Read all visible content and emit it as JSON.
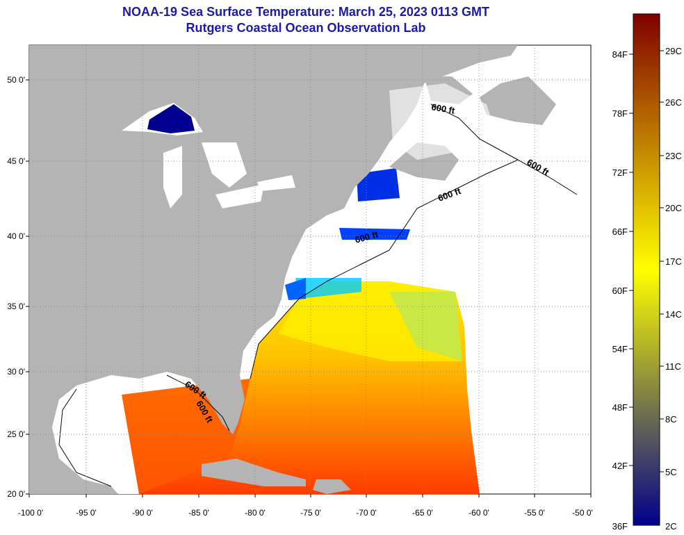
{
  "title": "NOAA-19 Sea Surface Temperature:  March 25, 2023 0113 GMT",
  "subtitle": "Rutgers Coastal Ocean Observation Lab",
  "colors": {
    "land": "#b4b4b4",
    "ocean_nodata": "#ffffff",
    "title": "#1a1aa6",
    "grid": "#888888"
  },
  "map_axes": {
    "lon_ticks": [
      "-100 0'",
      "-95 0'",
      "-90 0'",
      "-85 0'",
      "-80 0'",
      "-75 0'",
      "-70 0'",
      "-65 0'",
      "-60 0'",
      "-55 0'",
      "-50 0'"
    ],
    "lat_ticks": [
      "50 0'",
      "45 0'",
      "40 0'",
      "35 0'",
      "30 0'",
      "25 0'",
      "20 0'"
    ]
  },
  "contour_labels": [
    "600 ft",
    "600 ft",
    "600 ft",
    "600 ft",
    "600 ft",
    "600 ft"
  ],
  "colorbar": {
    "fahrenheit_labels": [
      "84F",
      "78F",
      "72F",
      "66F",
      "60F",
      "54F",
      "48F",
      "42F",
      "36F"
    ],
    "celsius_labels": [
      "29C",
      "26C",
      "23C",
      "20C",
      "17C",
      "14C",
      "11C",
      "8C",
      "5C",
      "2C"
    ],
    "gradient_top_to_bottom": [
      "#7f0000",
      "#c80000",
      "#ff2800",
      "#ff7800",
      "#ffc800",
      "#ffff00",
      "#aaff4c",
      "#00ffff",
      "#00c8ff",
      "#0064ff",
      "#0000ff",
      "#00008c"
    ]
  }
}
